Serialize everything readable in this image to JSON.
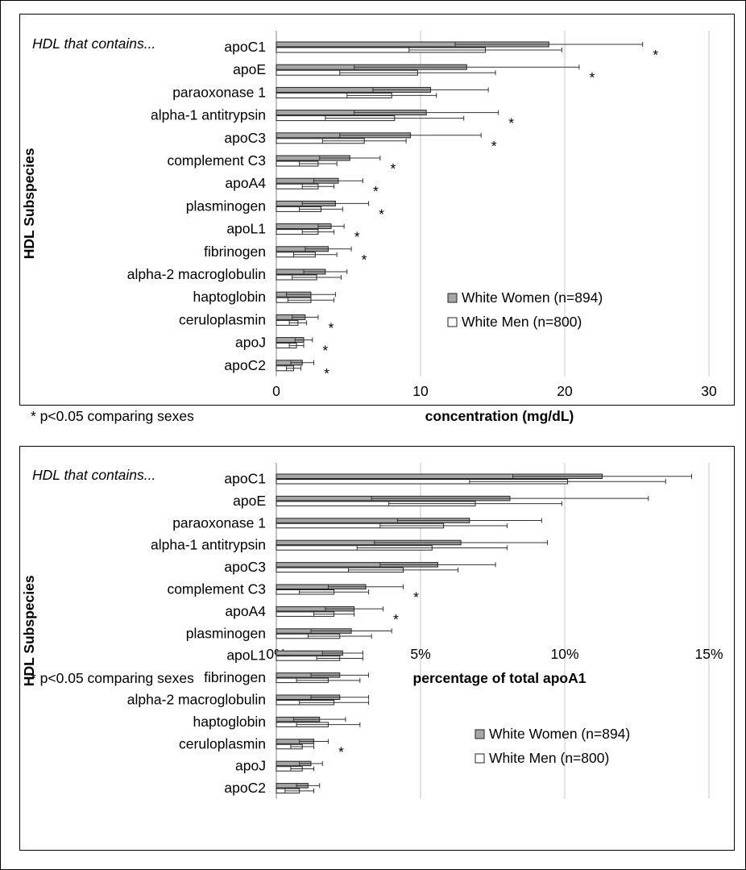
{
  "chart_data": [
    {
      "type": "bar",
      "orientation": "horizontal",
      "intro_label": "HDL that contains...",
      "ylabel": "HDL Subspecies",
      "xlabel": "concentration (mg/dL)",
      "footnote": "* p<0.05 comparing sexes",
      "xlim": [
        0,
        30
      ],
      "ticks": [
        0,
        10,
        20,
        30
      ],
      "tick_labels": [
        "0",
        "10",
        "20",
        "30"
      ],
      "grid": "vertical",
      "legend_position": "middle-right",
      "categories": [
        "apoC1",
        "apoE",
        "paraoxonase 1",
        "alpha-1 antitrypsin",
        "apoC3",
        "complement C3",
        "apoA4",
        "plasminogen",
        "apoL1",
        "fibrinogen",
        "alpha-2 macroglobulin",
        "haptoglobin",
        "ceruloplasmin",
        "apoJ",
        "apoC2"
      ],
      "series": [
        {
          "name": "White Women (n=894)",
          "values": [
            18.9,
            13.2,
            10.7,
            10.4,
            9.3,
            5.1,
            4.3,
            4.1,
            3.8,
            3.6,
            3.4,
            2.4,
            2.0,
            1.9,
            1.8
          ],
          "sd": [
            6.5,
            7.8,
            4.0,
            5.0,
            4.9,
            2.1,
            1.7,
            2.3,
            0.9,
            1.6,
            1.5,
            1.7,
            0.9,
            0.6,
            0.8
          ],
          "color": "#a6a6a6"
        },
        {
          "name": "White Men (n=800)",
          "values": [
            14.5,
            9.8,
            8.0,
            8.2,
            6.1,
            2.9,
            2.9,
            3.1,
            2.9,
            2.7,
            2.8,
            2.4,
            1.5,
            1.4,
            1.2
          ],
          "sd": [
            5.3,
            5.4,
            3.1,
            4.8,
            2.9,
            1.3,
            1.1,
            1.5,
            1.1,
            1.5,
            1.7,
            1.6,
            0.6,
            0.5,
            0.5
          ],
          "color": "#ffffff"
        }
      ],
      "significance": [
        true,
        true,
        false,
        true,
        true,
        true,
        true,
        true,
        true,
        true,
        false,
        false,
        true,
        true,
        true
      ],
      "significance_symbol": "*"
    },
    {
      "type": "bar",
      "orientation": "horizontal",
      "intro_label": "HDL that contains...",
      "ylabel": "HDL Subspecies",
      "xlabel": "percentage of total apoA1",
      "footnote": "* p<0.05 comparing sexes",
      "xlim": [
        0,
        15
      ],
      "ticks": [
        0,
        5,
        10,
        15
      ],
      "tick_labels": [
        "0%",
        "5%",
        "10%",
        "15%"
      ],
      "grid": "vertical",
      "legend_position": "bottom-right",
      "categories": [
        "apoC1",
        "apoE",
        "paraoxonase 1",
        "alpha-1 antitrypsin",
        "apoC3",
        "complement C3",
        "apoA4",
        "plasminogen",
        "apoL1",
        "fibrinogen",
        "alpha-2 macroglobulin",
        "haptoglobin",
        "ceruloplasmin",
        "apoJ",
        "apoC2"
      ],
      "series": [
        {
          "name": "White Women (n=894)",
          "values": [
            11.3,
            8.1,
            6.7,
            6.4,
            5.6,
            3.1,
            2.7,
            2.6,
            2.3,
            2.2,
            2.2,
            1.5,
            1.3,
            1.2,
            1.1
          ],
          "sd": [
            3.1,
            4.8,
            2.5,
            3.0,
            2.0,
            1.3,
            1.0,
            1.4,
            0.7,
            1.0,
            1.0,
            0.9,
            0.5,
            0.4,
            0.4
          ],
          "color": "#a6a6a6"
        },
        {
          "name": "White Men (n=800)",
          "values": [
            10.1,
            6.9,
            5.8,
            5.4,
            4.4,
            2.0,
            2.0,
            2.2,
            2.2,
            1.8,
            2.0,
            1.8,
            0.9,
            0.9,
            0.8
          ],
          "sd": [
            3.4,
            3.0,
            2.2,
            2.6,
            1.9,
            1.2,
            0.7,
            1.1,
            0.8,
            1.1,
            1.2,
            1.1,
            0.4,
            0.4,
            0.5
          ],
          "color": "#ffffff"
        }
      ],
      "significance": [
        false,
        false,
        false,
        false,
        false,
        true,
        true,
        false,
        false,
        false,
        false,
        false,
        true,
        false,
        false
      ],
      "significance_symbol": "*"
    }
  ]
}
